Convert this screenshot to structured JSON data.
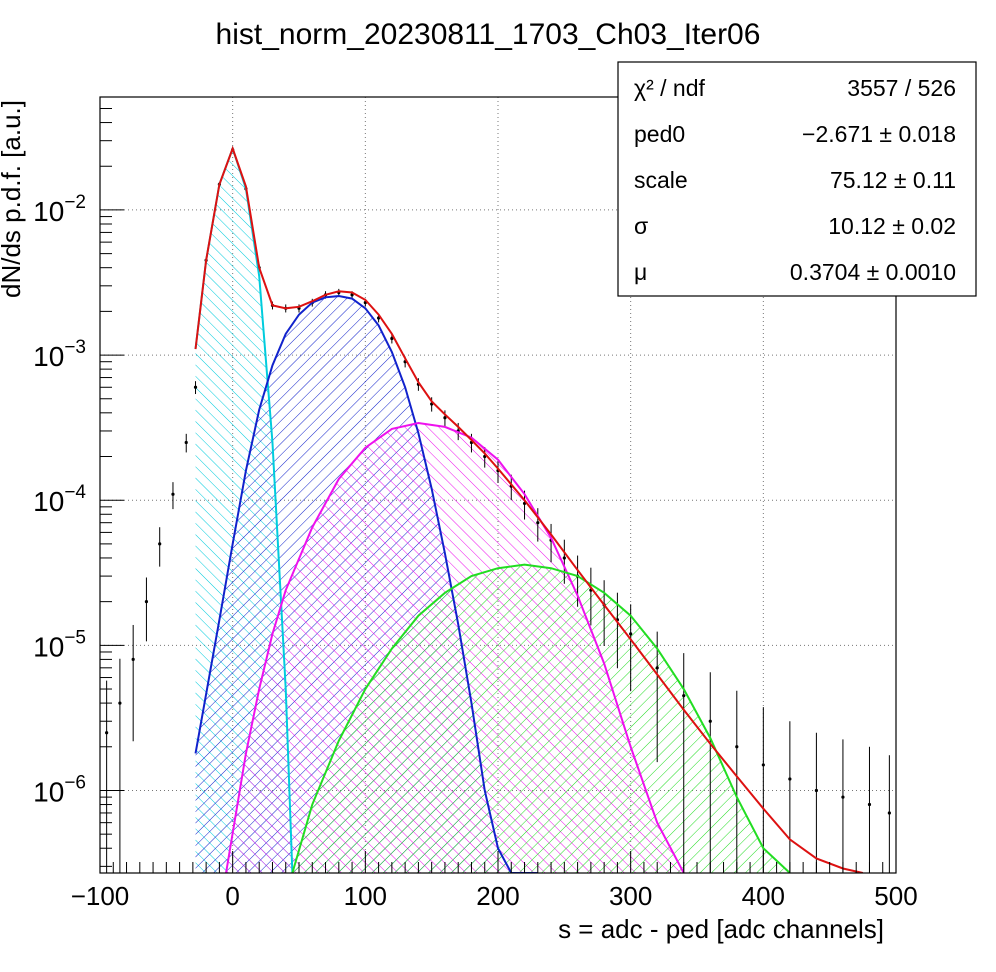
{
  "chart_data": {
    "type": "line",
    "title": "hist_norm_20230811_1703_Ch03_Iter06",
    "xlabel": "s = adc - ped [adc channels]",
    "ylabel": "dN/ds p.d.f. [a.u.]",
    "xlim": [
      -100,
      500
    ],
    "ylim": [
      2.7e-07,
      0.06
    ],
    "yscale": "log",
    "grid": true,
    "x_ticks": [
      -100,
      0,
      100,
      200,
      300,
      400,
      500
    ],
    "x_tick_labels": [
      "−100",
      "0",
      "100",
      "200",
      "300",
      "400",
      "500"
    ],
    "y_ticks": [
      1e-06,
      1e-05,
      0.0001,
      0.001,
      0.01
    ],
    "y_tick_labels": [
      {
        "base": "10",
        "exp": "−6"
      },
      {
        "base": "10",
        "exp": "−5"
      },
      {
        "base": "10",
        "exp": "−4"
      },
      {
        "base": "10",
        "exp": "−3"
      },
      {
        "base": "10",
        "exp": "−2"
      }
    ],
    "stats_box": {
      "placement": "top-right",
      "rows": [
        {
          "label": "χ² / ndf",
          "value": "3557 / 526"
        },
        {
          "label": "ped0",
          "value": "−2.671 ± 0.018"
        },
        {
          "label": "scale",
          "value": "75.12 ± 0.11"
        },
        {
          "label": "σ",
          "value": "10.12 ± 0.02"
        },
        {
          "label": "μ",
          "value": "0.3704 ± 0.0010"
        }
      ]
    },
    "histogram": {
      "color": "#000000",
      "x": [
        -95,
        -85,
        -75,
        -65,
        -55,
        -45,
        -35,
        -28,
        -20,
        -10,
        0,
        10,
        20,
        30,
        40,
        50,
        60,
        70,
        80,
        90,
        100,
        110,
        120,
        130,
        140,
        150,
        160,
        170,
        180,
        190,
        200,
        210,
        220,
        230,
        240,
        250,
        260,
        270,
        280,
        290,
        300,
        320,
        340,
        360,
        380,
        400,
        420,
        440,
        460,
        480,
        495
      ],
      "y": [
        2.5e-06,
        4e-06,
        8e-06,
        2e-05,
        5e-05,
        0.00011,
        0.00025,
        0.0006,
        0.0045,
        0.015,
        0.026,
        0.014,
        0.004,
        0.0022,
        0.0021,
        0.0021,
        0.0023,
        0.0026,
        0.0027,
        0.0026,
        0.0023,
        0.0018,
        0.0013,
        0.0009,
        0.00063,
        0.00046,
        0.00037,
        0.0003,
        0.00025,
        0.0002,
        0.00016,
        0.000125,
        9.5e-05,
        7e-05,
        5.3e-05,
        4e-05,
        3e-05,
        2.4e-05,
        1.9e-05,
        1.5e-05,
        1.2e-05,
        7e-06,
        4.5e-06,
        3e-06,
        2e-06,
        1.5e-06,
        1.2e-06,
        1e-06,
        9e-07,
        8e-07,
        7e-07
      ]
    },
    "series": [
      {
        "color": "#00ccdd",
        "hatch": true,
        "x": [
          -28,
          -20,
          -10,
          0,
          10,
          20,
          30,
          40,
          45
        ],
        "y": [
          0.0011,
          0.0045,
          0.015,
          0.0265,
          0.014,
          0.0035,
          0.00025,
          5e-06,
          2.7e-07
        ]
      },
      {
        "color": "#1122cc",
        "hatch": true,
        "x": [
          -28,
          -10,
          0,
          10,
          20,
          30,
          40,
          50,
          60,
          70,
          80,
          90,
          100,
          110,
          120,
          130,
          140,
          150,
          160,
          170,
          180,
          190,
          200,
          210,
          220,
          230
        ],
        "y": [
          1.8e-06,
          1.5e-05,
          5e-05,
          0.00016,
          0.00042,
          0.00085,
          0.0014,
          0.0019,
          0.0023,
          0.0025,
          0.00255,
          0.00245,
          0.0021,
          0.0016,
          0.00105,
          0.0006,
          0.00029,
          0.00012,
          4.3e-05,
          1.4e-05,
          4e-06,
          1e-06,
          4e-07,
          2.7e-07,
          2.7e-07,
          2.7e-07
        ]
      },
      {
        "color": "#ee11ee",
        "hatch": true,
        "x": [
          -5,
          10,
          20,
          30,
          40,
          60,
          80,
          100,
          120,
          140,
          160,
          180,
          200,
          220,
          240,
          260,
          280,
          300,
          320,
          340
        ],
        "y": [
          2.7e-07,
          1.8e-06,
          5e-06,
          1.2e-05,
          2.4e-05,
          6.5e-05,
          0.00014,
          0.00023,
          0.00031,
          0.00034,
          0.00032,
          0.00027,
          0.00019,
          0.00011,
          5.5e-05,
          2.2e-05,
          7.5e-06,
          2e-06,
          6e-07,
          2.7e-07
        ]
      },
      {
        "color": "#22dd22",
        "hatch": true,
        "x": [
          45,
          60,
          80,
          100,
          120,
          140,
          160,
          180,
          200,
          220,
          240,
          260,
          280,
          300,
          320,
          340,
          360,
          380,
          400,
          420
        ],
        "y": [
          2.7e-07,
          8e-07,
          2.2e-06,
          5e-06,
          9.5e-06,
          1.6e-05,
          2.3e-05,
          3e-05,
          3.4e-05,
          3.6e-05,
          3.4e-05,
          3e-05,
          2.3e-05,
          1.6e-05,
          9.5e-06,
          5e-06,
          2.3e-06,
          9e-07,
          4e-07,
          2.7e-07
        ]
      },
      {
        "color": "#dd1111",
        "hatch": false,
        "x": [
          -28,
          -20,
          -10,
          0,
          10,
          20,
          30,
          40,
          50,
          60,
          70,
          80,
          90,
          100,
          110,
          120,
          130,
          140,
          150,
          160,
          170,
          180,
          190,
          200,
          220,
          240,
          260,
          280,
          300,
          320,
          340,
          360,
          380,
          400,
          420,
          440,
          460,
          475
        ],
        "y": [
          0.0011,
          0.0045,
          0.015,
          0.0265,
          0.0145,
          0.004,
          0.0022,
          0.0021,
          0.00215,
          0.00235,
          0.0026,
          0.00275,
          0.0027,
          0.0024,
          0.0019,
          0.0014,
          0.00095,
          0.00065,
          0.00048,
          0.00039,
          0.00032,
          0.00026,
          0.00021,
          0.000165,
          0.0001,
          5.8e-05,
          3.3e-05,
          1.9e-05,
          1.1e-05,
          6.3e-06,
          3.6e-06,
          2.1e-06,
          1.25e-06,
          7.5e-07,
          4.6e-07,
          3.4e-07,
          2.9e-07,
          2.7e-07
        ]
      }
    ]
  }
}
